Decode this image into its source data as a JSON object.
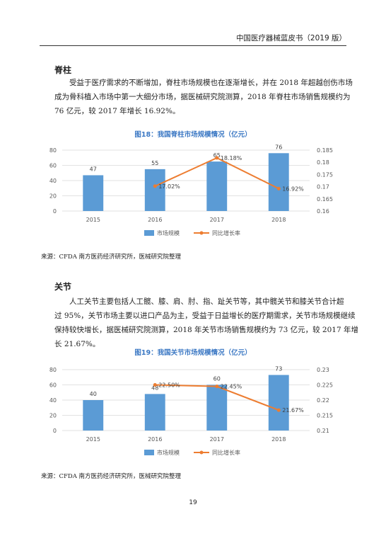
{
  "header": {
    "title": "中国医疗器械蓝皮书（2019 版）"
  },
  "sections": [
    {
      "heading": "脊柱",
      "paragraph_lines": [
        "受益于医疗需求的不断增加，脊柱市场规模也在逐渐增长，并在 2018 年超越创伤市场",
        "成为骨科植入市场中第一大细分市场，据医械研究院测算，2018 年脊柱市场销售规模约为",
        "76 亿元，较 2017 年增长 16.92%。"
      ],
      "source": "来源：CFDA 南方医药经济研究所，医械研究院整理"
    },
    {
      "heading": "关节",
      "paragraph_lines": [
        "人工关节主要包括人工髋、膝、肩、肘、指、趾关节等，其中髋关节和膝关节合计超",
        "过 95%，关节市场主要以进口产品为主，受益于日益增长的医疗期需求，关节市场规模继续",
        "保持较快增长，据医械研究院测算，2018 年关节市场销售规模约为 73 亿元，较 2017 年增",
        "长 21.67%。"
      ],
      "source": "来源：CFDA 南方医药经济研究所，医械研究院整理"
    }
  ],
  "chart_data": [
    {
      "type": "bar",
      "title": "图18：我国脊柱市场规模情况（亿元）",
      "categories": [
        "2015",
        "2016",
        "2017",
        "2018"
      ],
      "series": [
        {
          "name": "市场规模",
          "type": "bar",
          "axis": "left",
          "values": [
            47,
            55,
            65,
            76
          ],
          "labels": [
            "47",
            "55",
            "65",
            "76"
          ]
        },
        {
          "name": "同比增长率",
          "type": "line",
          "axis": "right",
          "values": [
            null,
            0.1702,
            0.1818,
            0.1692
          ],
          "labels": [
            "",
            "17.02%",
            "18.18%",
            "16.92%"
          ]
        }
      ],
      "ylim_left": [
        0,
        80
      ],
      "ylim_right": [
        0.16,
        0.185
      ],
      "yticks_left": [
        "0",
        "20",
        "40",
        "60",
        "80"
      ],
      "yticks_right": [
        "0.16",
        "0.165",
        "0.17",
        "0.175",
        "0.18",
        "0.185"
      ],
      "grid": true,
      "legend": "bottom",
      "colors": {
        "bar": "#5b9bd5",
        "line": "#ed7d31",
        "grid": "#d9d9d9",
        "axis_text": "#595959"
      }
    },
    {
      "type": "bar",
      "title": "图19：我国关节市场规模情况（亿元）",
      "categories": [
        "2015",
        "2016",
        "2017",
        "2018"
      ],
      "series": [
        {
          "name": "市场规模",
          "type": "bar",
          "axis": "left",
          "values": [
            40,
            48,
            60,
            73
          ],
          "labels": [
            "40",
            "48",
            "60",
            "73"
          ]
        },
        {
          "name": "同比增长率",
          "type": "line",
          "axis": "right",
          "values": [
            null,
            0.225,
            0.2245,
            0.2167
          ],
          "labels": [
            "",
            "22.50%",
            "22.45%",
            "21.67%"
          ]
        }
      ],
      "ylim_left": [
        0,
        80
      ],
      "ylim_right": [
        0.21,
        0.23
      ],
      "yticks_left": [
        "0",
        "20",
        "40",
        "60",
        "80"
      ],
      "yticks_right": [
        "0.21",
        "0.215",
        "0.22",
        "0.225",
        "0.23"
      ],
      "grid": true,
      "legend": "bottom",
      "colors": {
        "bar": "#5b9bd5",
        "line": "#ed7d31",
        "grid": "#d9d9d9",
        "axis_text": "#595959"
      }
    }
  ],
  "page_number": "19"
}
